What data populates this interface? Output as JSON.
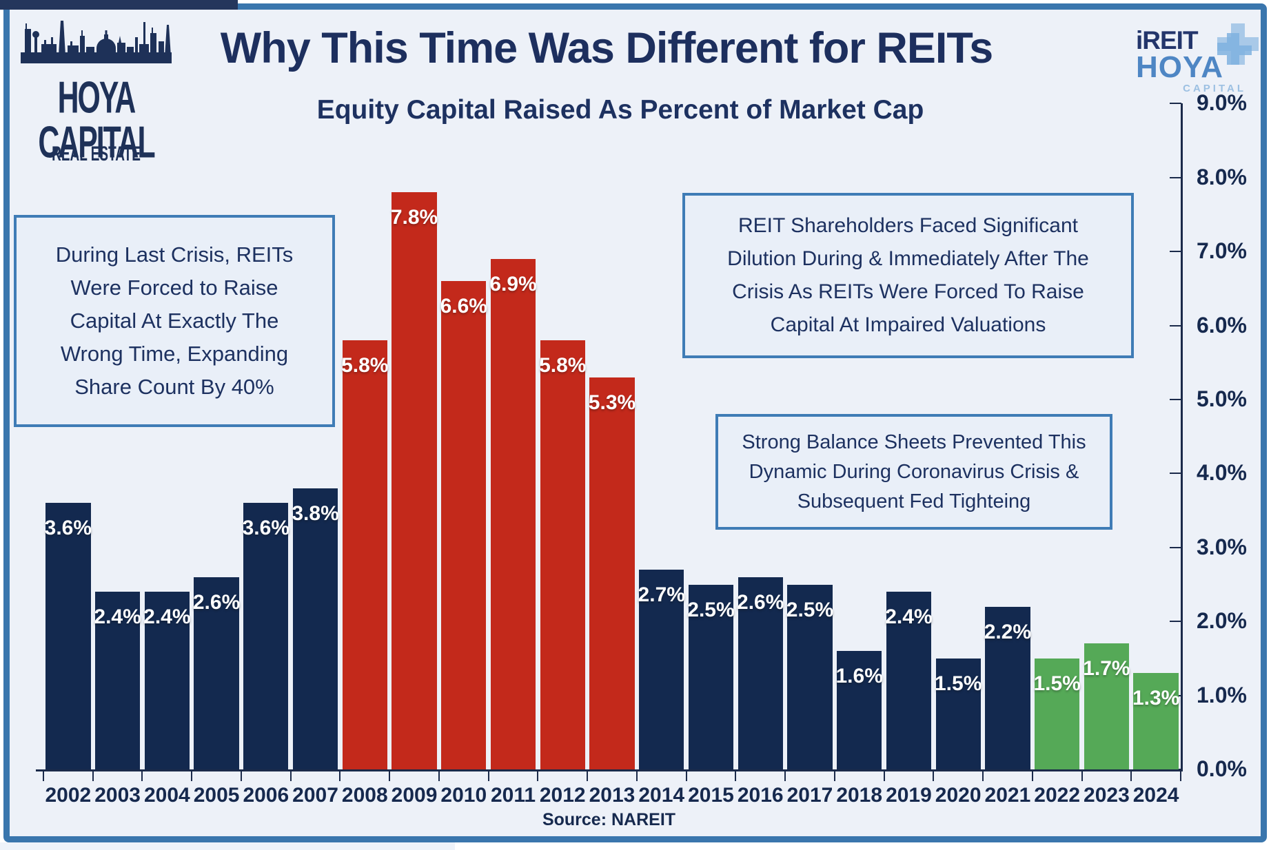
{
  "header": {
    "title": "Why This Time Was Different for REITs",
    "subtitle": "Equity Capital Raised As Percent of Market Cap"
  },
  "logos": {
    "hoya_capital": {
      "line1": "HOYA CAPITAL",
      "line2": "REAL ESTATE"
    },
    "ireit": {
      "line1": "iREIT",
      "line2": "HOYA",
      "line3": "CAPITAL"
    }
  },
  "annotations": {
    "left_box": "During Last Crisis, REITs Were Forced to Raise Capital At Exactly The Wrong Time, Expanding Share Count By 40%",
    "right_box_top": "REIT Shareholders Faced Significant Dilution During & Immediately After The Crisis As REITs Were Forced To Raise Capital At Impaired Valuations",
    "right_box_bottom": "Strong Balance Sheets Prevented This Dynamic During Coronavirus Crisis & Subsequent Fed Tighteing"
  },
  "source": "Source: NAREIT",
  "chart_data": {
    "type": "bar",
    "title": "Why This Time Was Different for REITs",
    "subtitle": "Equity Capital Raised As Percent of Market Cap",
    "xlabel": "",
    "ylabel": "Equity Capital Raised As Percent of Market Cap",
    "ylim": [
      0,
      9
    ],
    "grid": false,
    "legend": "none",
    "y_axis_side": "right",
    "ytick_labels": [
      "0.0%",
      "1.0%",
      "2.0%",
      "3.0%",
      "4.0%",
      "5.0%",
      "6.0%",
      "7.0%",
      "8.0%",
      "9.0%"
    ],
    "categories": [
      "2002",
      "2003",
      "2004",
      "2005",
      "2006",
      "2007",
      "2008",
      "2009",
      "2010",
      "2011",
      "2012",
      "2013",
      "2014",
      "2015",
      "2016",
      "2017",
      "2018",
      "2019",
      "2020",
      "2021",
      "2022",
      "2023",
      "2024"
    ],
    "values": [
      3.6,
      2.4,
      2.4,
      2.6,
      3.6,
      3.8,
      5.8,
      7.8,
      6.6,
      6.9,
      5.8,
      5.3,
      2.7,
      2.5,
      2.6,
      2.5,
      1.6,
      2.4,
      1.5,
      2.2,
      1.5,
      1.7,
      1.3
    ],
    "value_labels": [
      "3.6%",
      "2.4%",
      "2.4%",
      "2.6%",
      "3.6%",
      "3.8%",
      "5.8%",
      "7.8%",
      "6.6%",
      "6.9%",
      "5.8%",
      "5.3%",
      "2.7%",
      "2.5%",
      "2.6%",
      "2.5%",
      "1.6%",
      "2.4%",
      "1.5%",
      "2.2%",
      "1.5%",
      "1.7%",
      "1.3%"
    ],
    "bar_color_keys": [
      "navy",
      "navy",
      "navy",
      "navy",
      "navy",
      "navy",
      "red",
      "red",
      "red",
      "red",
      "red",
      "red",
      "navy",
      "navy",
      "navy",
      "navy",
      "navy",
      "navy",
      "navy",
      "navy",
      "green",
      "green",
      "green"
    ],
    "palette": {
      "navy": "#13294f",
      "red": "#c3291b",
      "green": "#55a957",
      "background": "#edf1f8",
      "frame_border": "#3a76ad",
      "box_border": "#3f7cb6",
      "box_background": "#e9eff8",
      "text_navy": "#1d3160",
      "bar_label_white": "#ffffff"
    }
  }
}
